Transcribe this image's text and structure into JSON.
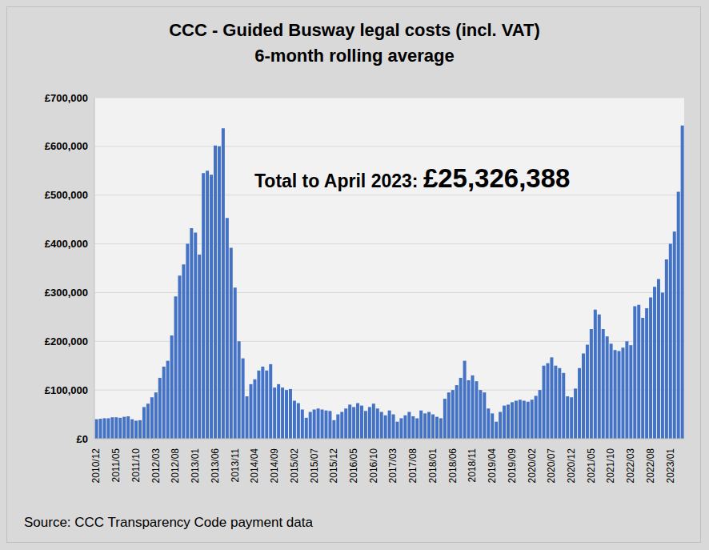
{
  "chart_data": {
    "type": "bar",
    "title": "CCC - Guided Busway legal costs (incl. VAT)",
    "subtitle": "6-month rolling average",
    "annotation": {
      "text": "Total to April 2023:",
      "value": "£25,326,388"
    },
    "source": "Source: CCC Transparency Code payment data",
    "color": "#4472c4",
    "grid": true,
    "ylim": [
      0,
      700000
    ],
    "yticks": [
      {
        "value": 0,
        "label": "£0"
      },
      {
        "value": 100000,
        "label": "£100,000"
      },
      {
        "value": 200000,
        "label": "£200,000"
      },
      {
        "value": 300000,
        "label": "£300,000"
      },
      {
        "value": 400000,
        "label": "£400,000"
      },
      {
        "value": 500000,
        "label": "£500,000"
      },
      {
        "value": 600000,
        "label": "£600,000"
      },
      {
        "value": 700000,
        "label": "£700,000"
      }
    ],
    "categories": [
      "2010/12",
      null,
      null,
      null,
      null,
      "2011/05",
      null,
      null,
      null,
      null,
      "2011/10",
      null,
      null,
      null,
      null,
      "2012/03",
      null,
      null,
      null,
      null,
      "2012/08",
      null,
      null,
      null,
      null,
      "2013/01",
      null,
      null,
      null,
      null,
      "2013/06",
      null,
      null,
      null,
      null,
      "2013/11",
      null,
      null,
      null,
      null,
      "2014/04",
      null,
      null,
      null,
      null,
      "2014/09",
      null,
      null,
      null,
      null,
      "2015/02",
      null,
      null,
      null,
      null,
      "2015/07",
      null,
      null,
      null,
      null,
      "2015/12",
      null,
      null,
      null,
      null,
      "2016/05",
      null,
      null,
      null,
      null,
      "2016/10",
      null,
      null,
      null,
      null,
      "2017/03",
      null,
      null,
      null,
      null,
      "2017/08",
      null,
      null,
      null,
      null,
      "2018/01",
      null,
      null,
      null,
      null,
      "2018/06",
      null,
      null,
      null,
      null,
      "2018/11",
      null,
      null,
      null,
      null,
      "2019/04",
      null,
      null,
      null,
      null,
      "2019/09",
      null,
      null,
      null,
      null,
      "2020/02",
      null,
      null,
      null,
      null,
      "2020/07",
      null,
      null,
      null,
      null,
      "2020/12",
      null,
      null,
      null,
      null,
      "2021/05",
      null,
      null,
      null,
      null,
      "2021/10",
      null,
      null,
      null,
      null,
      "2022/03",
      null,
      null,
      null,
      null,
      "2022/08",
      null,
      null,
      null,
      null,
      "2023/01",
      null,
      null,
      null
    ],
    "values": [
      40000,
      41000,
      42000,
      42000,
      44000,
      44000,
      43000,
      45000,
      46000,
      40000,
      37000,
      38000,
      65000,
      72000,
      85000,
      95000,
      125000,
      148000,
      160000,
      212000,
      292000,
      335000,
      358000,
      400000,
      432000,
      423000,
      378000,
      545000,
      550000,
      542000,
      602000,
      600000,
      637000,
      453000,
      392000,
      310000,
      200000,
      165000,
      87000,
      112000,
      122000,
      140000,
      148000,
      140000,
      153000,
      105000,
      112000,
      105000,
      100000,
      102000,
      78000,
      73000,
      60000,
      43000,
      55000,
      60000,
      62000,
      60000,
      58000,
      57000,
      38000,
      50000,
      55000,
      62000,
      70000,
      65000,
      73000,
      68000,
      57000,
      65000,
      72000,
      62000,
      55000,
      48000,
      58000,
      50000,
      35000,
      42000,
      48000,
      55000,
      46000,
      42000,
      58000,
      52000,
      55000,
      50000,
      45000,
      42000,
      82000,
      95000,
      100000,
      110000,
      125000,
      160000,
      120000,
      130000,
      118000,
      100000,
      95000,
      62000,
      52000,
      35000,
      55000,
      68000,
      70000,
      75000,
      78000,
      80000,
      78000,
      76000,
      80000,
      88000,
      100000,
      150000,
      155000,
      167000,
      150000,
      145000,
      135000,
      87000,
      85000,
      103000,
      145000,
      175000,
      193000,
      225000,
      265000,
      255000,
      225000,
      210000,
      195000,
      182000,
      180000,
      187000,
      200000,
      192000,
      272000,
      275000,
      248000,
      268000,
      290000,
      312000,
      328000,
      300000,
      368000,
      400000,
      425000,
      507000,
      643000
    ]
  }
}
